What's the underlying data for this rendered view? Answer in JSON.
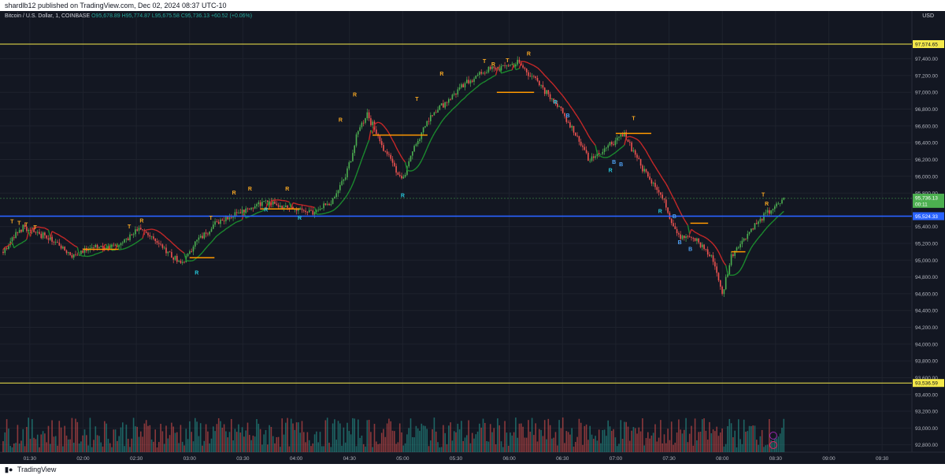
{
  "publisher_line": "shardlb12 published on TradingView.com, Dec 02, 2024 08:37 UTC-10",
  "legend": {
    "symbol": "Bitcoin / U.S. Dollar, 1, COINBASE",
    "open": "O95,678.89",
    "high": "H95,774.87",
    "low": "L95,675.58",
    "close": "C95,736.13",
    "change": "+60.52 (+0.06%)"
  },
  "currency": "USD",
  "footer_brand": "TradingView",
  "colors": {
    "bg": "#131722",
    "up": "#4caf50",
    "down": "#ef5350",
    "yellow_line": "#f5e94a",
    "blue_line": "#2962ff",
    "trail_up": "#1b8a2e",
    "trail_down": "#c62828",
    "signal_r": "#f5a623",
    "signal_b": "#4fa3f7",
    "signal_cyan": "#26c6da",
    "price_label": "#4caf50"
  },
  "chart_data": {
    "type": "candlestick",
    "title": "",
    "x_ticks": [
      "01:30",
      "02:00",
      "02:30",
      "03:00",
      "03:30",
      "04:00",
      "04:30",
      "05:00",
      "05:30",
      "06:00",
      "06:30",
      "07:00",
      "07:30",
      "08:00",
      "08:30",
      "09:00",
      "09:30"
    ],
    "y_ticks": [
      "97,400.00",
      "97,200.00",
      "97,000.00",
      "96,800.00",
      "96,600.00",
      "96,400.00",
      "96,200.00",
      "96,000.00",
      "95,800.00",
      "95,400.00",
      "95,200.00",
      "95,000.00",
      "94,800.00",
      "94,600.00",
      "94,400.00",
      "94,200.00",
      "94,000.00",
      "93,800.00",
      "93,600.00",
      "93,400.00",
      "93,200.00",
      "93,000.00",
      "92,800.00"
    ],
    "y_range": [
      92750,
      97800
    ],
    "horizontal_lines": [
      {
        "value": 97574.65,
        "label": "97,574.65",
        "color": "yellow"
      },
      {
        "value": 95524.33,
        "label": "95,524.33",
        "color": "blue"
      },
      {
        "value": 93536.59,
        "label": "93,536.59",
        "color": "yellow"
      }
    ],
    "current_price": {
      "value": 95736.13,
      "label": "95,736.13",
      "countdown": "00:11"
    },
    "price_path": [
      {
        "t": "01:15",
        "p": 95100
      },
      {
        "t": "01:20",
        "p": 95280
      },
      {
        "t": "01:27",
        "p": 95400
      },
      {
        "t": "01:35",
        "p": 95320
      },
      {
        "t": "01:45",
        "p": 95200
      },
      {
        "t": "01:55",
        "p": 95050
      },
      {
        "t": "02:05",
        "p": 95150
      },
      {
        "t": "02:20",
        "p": 95180
      },
      {
        "t": "02:30",
        "p": 95350
      },
      {
        "t": "02:38",
        "p": 95300
      },
      {
        "t": "02:45",
        "p": 95150
      },
      {
        "t": "02:55",
        "p": 94950
      },
      {
        "t": "03:05",
        "p": 95250
      },
      {
        "t": "03:15",
        "p": 95450
      },
      {
        "t": "03:30",
        "p": 95600
      },
      {
        "t": "03:45",
        "p": 95700
      },
      {
        "t": "04:00",
        "p": 95600
      },
      {
        "t": "04:10",
        "p": 95550
      },
      {
        "t": "04:20",
        "p": 95700
      },
      {
        "t": "04:28",
        "p": 96000
      },
      {
        "t": "04:35",
        "p": 96550
      },
      {
        "t": "04:40",
        "p": 96750
      },
      {
        "t": "04:50",
        "p": 96300
      },
      {
        "t": "05:00",
        "p": 95950
      },
      {
        "t": "05:05",
        "p": 96300
      },
      {
        "t": "05:15",
        "p": 96700
      },
      {
        "t": "05:25",
        "p": 96900
      },
      {
        "t": "05:35",
        "p": 97100
      },
      {
        "t": "05:45",
        "p": 97250
      },
      {
        "t": "05:55",
        "p": 97300
      },
      {
        "t": "06:05",
        "p": 97350
      },
      {
        "t": "06:15",
        "p": 97150
      },
      {
        "t": "06:25",
        "p": 96900
      },
      {
        "t": "06:35",
        "p": 96600
      },
      {
        "t": "06:45",
        "p": 96200
      },
      {
        "t": "06:55",
        "p": 96350
      },
      {
        "t": "07:05",
        "p": 96500
      },
      {
        "t": "07:15",
        "p": 96100
      },
      {
        "t": "07:25",
        "p": 95800
      },
      {
        "t": "07:35",
        "p": 95300
      },
      {
        "t": "07:45",
        "p": 95250
      },
      {
        "t": "07:55",
        "p": 95000
      },
      {
        "t": "08:00",
        "p": 94600
      },
      {
        "t": "08:05",
        "p": 95050
      },
      {
        "t": "08:15",
        "p": 95350
      },
      {
        "t": "08:25",
        "p": 95550
      },
      {
        "t": "08:35",
        "p": 95736
      }
    ],
    "signals": [
      {
        "label": "T",
        "t": "01:20",
        "p": 95440,
        "kind": "r"
      },
      {
        "label": "T",
        "t": "01:24",
        "p": 95420,
        "kind": "r"
      },
      {
        "label": "T",
        "t": "01:28",
        "p": 95400,
        "kind": "r"
      },
      {
        "label": "T",
        "t": "01:33",
        "p": 95370,
        "kind": "r"
      },
      {
        "label": "T",
        "t": "02:26",
        "p": 95380,
        "kind": "r"
      },
      {
        "label": "R",
        "t": "02:33",
        "p": 95450,
        "kind": "r"
      },
      {
        "label": "R",
        "t": "03:04",
        "p": 94830,
        "kind": "cyan"
      },
      {
        "label": "T",
        "t": "03:12",
        "p": 95480,
        "kind": "r"
      },
      {
        "label": "R",
        "t": "03:25",
        "p": 95780,
        "kind": "r"
      },
      {
        "label": "R",
        "t": "03:34",
        "p": 95830,
        "kind": "r"
      },
      {
        "label": "R",
        "t": "03:43",
        "p": 95580,
        "kind": "cyan"
      },
      {
        "label": "R",
        "t": "03:55",
        "p": 95830,
        "kind": "r"
      },
      {
        "label": "R",
        "t": "04:02",
        "p": 95480,
        "kind": "cyan"
      },
      {
        "label": "R",
        "t": "04:25",
        "p": 96650,
        "kind": "r"
      },
      {
        "label": "R",
        "t": "04:33",
        "p": 96950,
        "kind": "r"
      },
      {
        "label": "R",
        "t": "05:00",
        "p": 95750,
        "kind": "cyan"
      },
      {
        "label": "T",
        "t": "05:08",
        "p": 96900,
        "kind": "r"
      },
      {
        "label": "R",
        "t": "05:22",
        "p": 97200,
        "kind": "r"
      },
      {
        "label": "T",
        "t": "05:46",
        "p": 97350,
        "kind": "r"
      },
      {
        "label": "R",
        "t": "05:51",
        "p": 97310,
        "kind": "r"
      },
      {
        "label": "T",
        "t": "05:59",
        "p": 97360,
        "kind": "r"
      },
      {
        "label": "R",
        "t": "06:11",
        "p": 97440,
        "kind": "r"
      },
      {
        "label": "R",
        "t": "06:26",
        "p": 96860,
        "kind": "cyan"
      },
      {
        "label": "B",
        "t": "06:33",
        "p": 96700,
        "kind": "b"
      },
      {
        "label": "T",
        "t": "07:10",
        "p": 96670,
        "kind": "r"
      },
      {
        "label": "R",
        "t": "06:57",
        "p": 96050,
        "kind": "cyan"
      },
      {
        "label": "B",
        "t": "06:59",
        "p": 96150,
        "kind": "b"
      },
      {
        "label": "B",
        "t": "07:03",
        "p": 96120,
        "kind": "b"
      },
      {
        "label": "R",
        "t": "07:25",
        "p": 95560,
        "kind": "cyan"
      },
      {
        "label": "B",
        "t": "07:36",
        "p": 95190,
        "kind": "b"
      },
      {
        "label": "B",
        "t": "07:42",
        "p": 95110,
        "kind": "b"
      },
      {
        "label": "B",
        "t": "07:33",
        "p": 95500,
        "kind": "b"
      },
      {
        "label": "T",
        "t": "08:23",
        "p": 95760,
        "kind": "r"
      },
      {
        "label": "R",
        "t": "08:25",
        "p": 95650,
        "kind": "r"
      }
    ],
    "levels": [
      {
        "t1": "02:00",
        "t2": "02:20",
        "p": 95130
      },
      {
        "t1": "03:00",
        "t2": "03:14",
        "p": 95030
      },
      {
        "t1": "03:40",
        "t2": "04:02",
        "p": 95610
      },
      {
        "t1": "04:43",
        "t2": "05:14",
        "p": 96490
      },
      {
        "t1": "05:53",
        "t2": "06:14",
        "p": 97000
      },
      {
        "t1": "07:00",
        "t2": "07:20",
        "p": 96510
      },
      {
        "t1": "07:42",
        "t2": "07:52",
        "p": 95440
      },
      {
        "t1": "08:05",
        "t2": "08:13",
        "p": 95100
      }
    ],
    "grid": true,
    "legend_position": "top-left"
  }
}
